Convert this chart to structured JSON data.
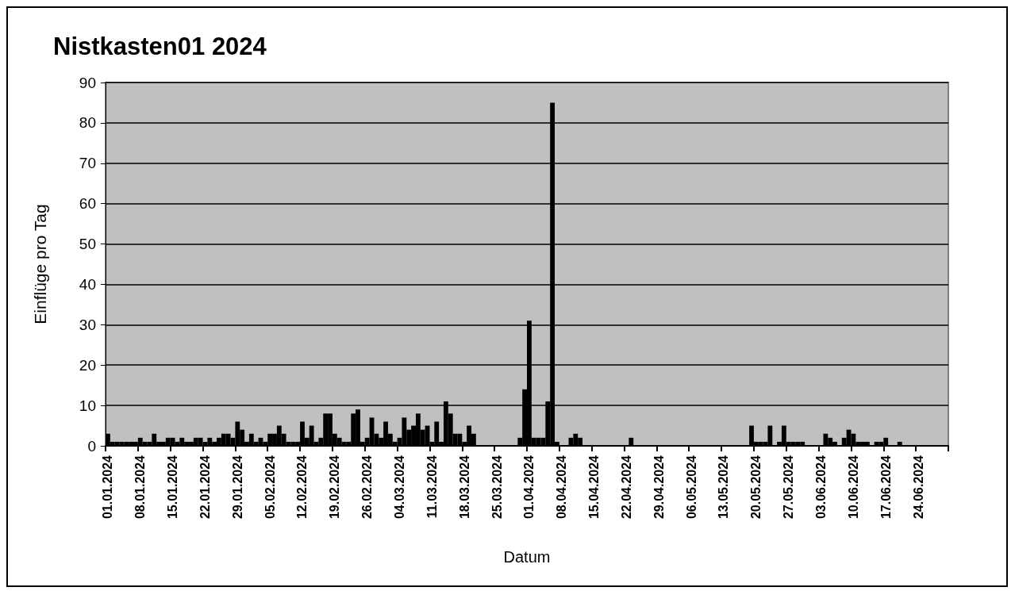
{
  "chart_data": {
    "type": "bar",
    "title": "Nistkasten01 2024",
    "xlabel": "Datum",
    "ylabel": "Einflüge pro Tag",
    "categories": [
      "01.01.2024",
      null,
      null,
      null,
      null,
      null,
      null,
      "08.01.2024",
      null,
      null,
      null,
      null,
      null,
      null,
      "15.01.2024",
      null,
      null,
      null,
      null,
      null,
      null,
      "22.01.2024",
      null,
      null,
      null,
      null,
      null,
      null,
      "29.01.2024",
      null,
      null,
      null,
      null,
      null,
      null,
      "05.02.2024",
      null,
      null,
      null,
      null,
      null,
      null,
      "12.02.2024",
      null,
      null,
      null,
      null,
      null,
      null,
      "19.02.2024",
      null,
      null,
      null,
      null,
      null,
      null,
      "26.02.2024",
      null,
      null,
      null,
      null,
      null,
      null,
      "04.03.2024",
      null,
      null,
      null,
      null,
      null,
      null,
      "11.03.2024",
      null,
      null,
      null,
      null,
      null,
      null,
      "18.03.2024",
      null,
      null,
      null,
      null,
      null,
      null,
      "25.03.2024",
      null,
      null,
      null,
      null,
      null,
      null,
      "01.04.2024",
      null,
      null,
      null,
      null,
      null,
      null,
      "08.04.2024",
      null,
      null,
      null,
      null,
      null,
      null,
      "15.04.2024",
      null,
      null,
      null,
      null,
      null,
      null,
      "22.04.2024",
      null,
      null,
      null,
      null,
      null,
      null,
      "29.04.2024",
      null,
      null,
      null,
      null,
      null,
      null,
      "06.05.2024",
      null,
      null,
      null,
      null,
      null,
      null,
      "13.05.2024",
      null,
      null,
      null,
      null,
      null,
      null,
      "20.05.2024",
      null,
      null,
      null,
      null,
      null,
      null,
      "27.05.2024",
      null,
      null,
      null,
      null,
      null,
      null,
      "03.06.2024",
      null,
      null,
      null,
      null,
      null,
      null,
      "10.06.2024",
      null,
      null,
      null,
      null,
      null,
      null,
      "17.06.2024",
      null,
      null,
      null,
      null,
      null,
      null,
      "24.06.2024",
      null,
      null,
      null,
      null,
      null,
      null
    ],
    "values": [
      3,
      1,
      1,
      1,
      1,
      1,
      1,
      2,
      1,
      1,
      3,
      1,
      1,
      2,
      2,
      1,
      2,
      1,
      1,
      2,
      2,
      1,
      2,
      1,
      2,
      3,
      3,
      2,
      6,
      4,
      1,
      3,
      1,
      2,
      1,
      3,
      3,
      5,
      3,
      1,
      1,
      1,
      6,
      2,
      5,
      1,
      2,
      8,
      8,
      3,
      2,
      1,
      1,
      8,
      9,
      1,
      2,
      7,
      3,
      2,
      6,
      3,
      1,
      2,
      7,
      4,
      5,
      8,
      4,
      5,
      1,
      6,
      1,
      11,
      8,
      3,
      3,
      1,
      5,
      3,
      0,
      0,
      0,
      0,
      0,
      0,
      0,
      0,
      0,
      2,
      14,
      31,
      2,
      2,
      2,
      11,
      85,
      1,
      0,
      0,
      2,
      3,
      2,
      0,
      0,
      0,
      0,
      0,
      0,
      0,
      0,
      0,
      0,
      2,
      0,
      0,
      0,
      0,
      0,
      0,
      0,
      0,
      0,
      0,
      0,
      0,
      0,
      0,
      0,
      0,
      0,
      0,
      0,
      0,
      0,
      0,
      0,
      0,
      0,
      5,
      1,
      1,
      1,
      5,
      0,
      1,
      5,
      1,
      1,
      1,
      1,
      0,
      0,
      0,
      0,
      3,
      2,
      1,
      0,
      2,
      4,
      3,
      1,
      1,
      1,
      0,
      1,
      1,
      2,
      0,
      0,
      1,
      0,
      0,
      0,
      0,
      0,
      0,
      0,
      0,
      0,
      0
    ],
    "color": "#000000",
    "ylim": [
      0,
      90
    ],
    "yticks": [
      0,
      10,
      20,
      30,
      40,
      50,
      60,
      70,
      80,
      90
    ],
    "grid": "y"
  }
}
